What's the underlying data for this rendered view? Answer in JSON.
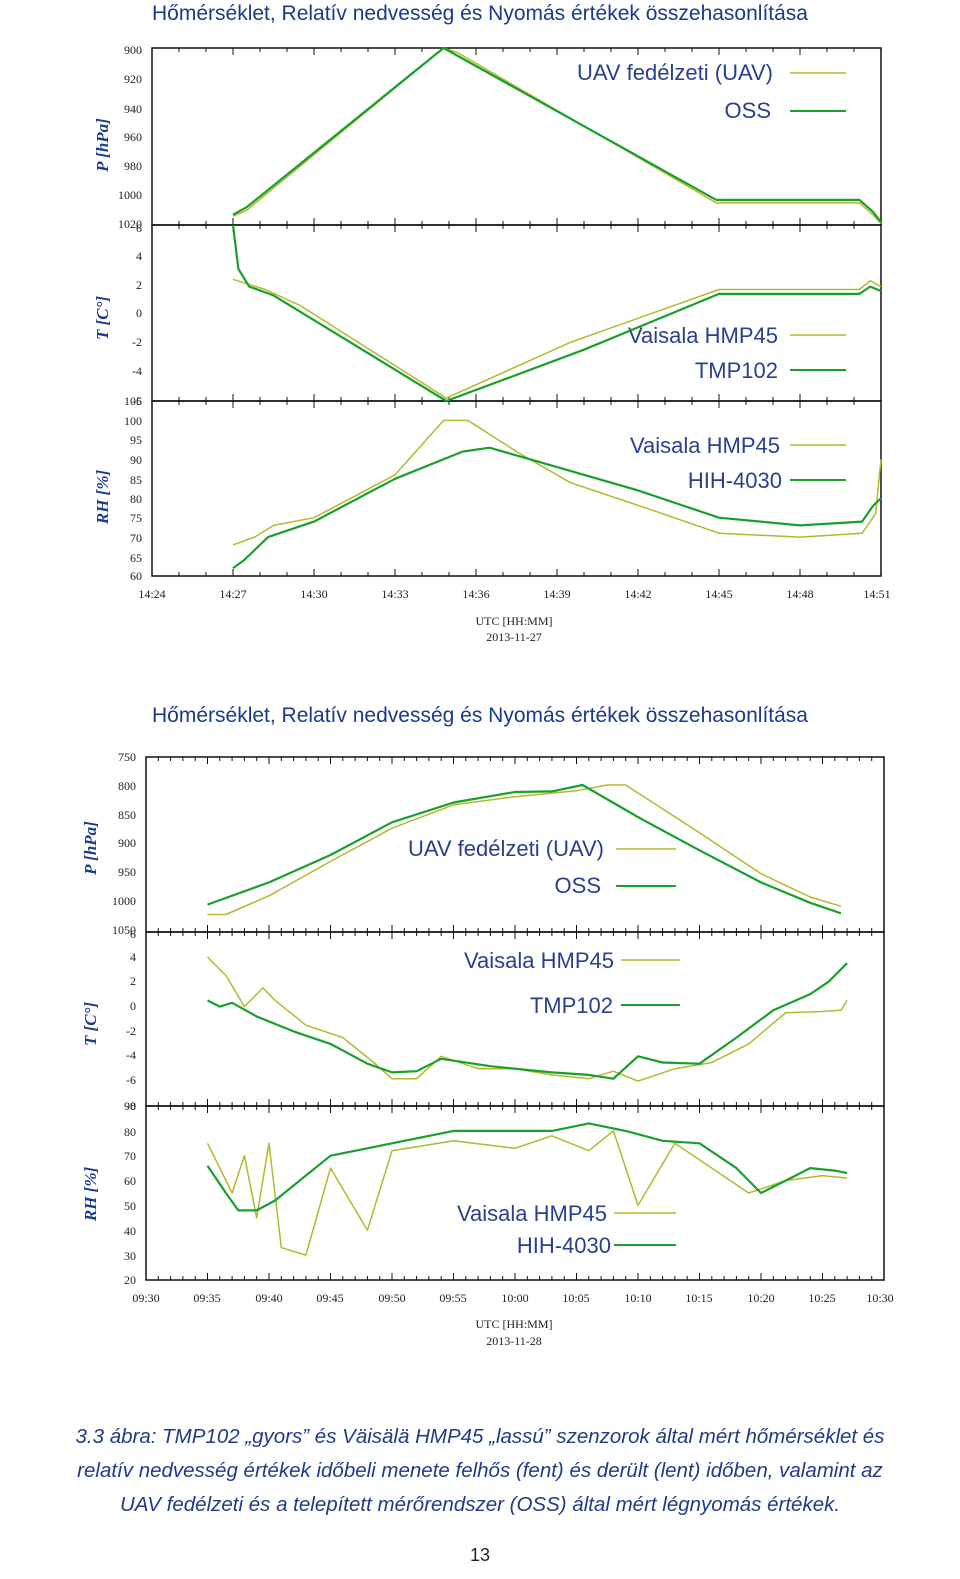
{
  "colors": {
    "vaisala": "#b5b82c",
    "green": "#18a02c",
    "frame": "#111111",
    "title": "#1a3a8c"
  },
  "figure1": {
    "title": "Hőmérséklet, Relatív nedvesség és Nyomás értékek összehasonlítása",
    "xlabel": "UTC [HH:MM]",
    "date": "2013-11-27",
    "xticks": [
      "14:24",
      "14:27",
      "14:30",
      "14:33",
      "14:36",
      "14:39",
      "14:42",
      "14:45",
      "14:48",
      "14:51"
    ],
    "panels": [
      {
        "ylabel": "P [hPa]",
        "yticks": [
          "900",
          "920",
          "940",
          "960",
          "980",
          "1000",
          "1020"
        ],
        "legend": [
          "UAV fedélzeti (UAV)",
          "OSS"
        ]
      },
      {
        "ylabel": "T [C°]",
        "yticks": [
          "6",
          "4",
          "2",
          "0",
          "-2",
          "-4",
          "-6"
        ],
        "legend": [
          "Vaisala HMP45",
          "TMP102"
        ]
      },
      {
        "ylabel": "RH [%]",
        "yticks": [
          "105",
          "100",
          "95",
          "90",
          "85",
          "80",
          "75",
          "70",
          "65",
          "60"
        ],
        "legend": [
          "Vaisala HMP45",
          "HIH-4030"
        ]
      }
    ]
  },
  "figure2": {
    "title": "Hőmérséklet, Relatív nedvesség és Nyomás értékek összehasonlítása",
    "xlabel": "UTC [HH:MM]",
    "date": "2013-11-28",
    "xticks": [
      "09:30",
      "09:35",
      "09:40",
      "09:45",
      "09:50",
      "09:55",
      "10:00",
      "10:05",
      "10:10",
      "10:15",
      "10:20",
      "10:25",
      "10:30"
    ],
    "panels": [
      {
        "ylabel": "P [hPa]",
        "yticks": [
          "750",
          "800",
          "850",
          "900",
          "950",
          "1000",
          "1050"
        ],
        "legend": [
          "UAV fedélzeti (UAV)",
          "OSS"
        ]
      },
      {
        "ylabel": "T [C°]",
        "yticks": [
          "6",
          "4",
          "2",
          "0",
          "-2",
          "-4",
          "-6",
          "-8"
        ],
        "legend": [
          "Vaisala HMP45",
          "TMP102"
        ]
      },
      {
        "ylabel": "RH [%]",
        "yticks": [
          "90",
          "80",
          "70",
          "60",
          "50",
          "40",
          "30",
          "20"
        ],
        "legend": [
          "Vaisala HMP45",
          "HIH-4030"
        ]
      }
    ]
  },
  "chart_data": [
    {
      "type": "line",
      "title": "Hőmérséklet, Relatív nedvesség és Nyomás értékek összehasonlítása",
      "xlabel": "UTC [HH:MM] 2013-11-27",
      "x_unit": "minutes after 14:24",
      "xlim": [
        0,
        27
      ],
      "panels": [
        {
          "ylabel": "P [hPa]",
          "ylim": [
            1020,
            900
          ],
          "series": [
            {
              "name": "UAV fedélzeti (UAV)",
              "x": [
                3,
                3.5,
                10.8,
                11.3,
                20.9,
                26.2,
                26.7,
                27
              ],
              "y": [
                1014,
                1010,
                900,
                903,
                1005,
                1005,
                1013,
                1019
              ]
            },
            {
              "name": "OSS",
              "x": [
                3,
                3.5,
                10.8,
                20.9,
                26.2,
                26.7,
                27
              ],
              "y": [
                1013,
                1008,
                900,
                1003,
                1003,
                1011,
                1018
              ]
            }
          ]
        },
        {
          "ylabel": "T [C°]",
          "ylim": [
            -6,
            6
          ],
          "series": [
            {
              "name": "Vaisala HMP45",
              "x": [
                3,
                4.2,
                5.5,
                10.9,
                15.5,
                21.0,
                26.2,
                26.6,
                27
              ],
              "y": [
                2.3,
                1.6,
                0.5,
                -5.8,
                -2.0,
                1.6,
                1.6,
                2.2,
                1.8
              ]
            },
            {
              "name": "TMP102",
              "x": [
                3,
                3.2,
                3.6,
                4.5,
                10.9,
                16.0,
                21.0,
                26.2,
                26.6,
                27
              ],
              "y": [
                6,
                3.0,
                1.8,
                1.2,
                -6.0,
                -2.5,
                1.3,
                1.3,
                1.8,
                1.5
              ]
            }
          ]
        },
        {
          "ylabel": "RH [%]",
          "ylim": [
            60,
            105
          ],
          "series": [
            {
              "name": "Vaisala HMP45",
              "x": [
                3,
                3.8,
                4.5,
                6,
                9,
                10.8,
                11.7,
                13.5,
                15.5,
                18.5,
                21,
                24,
                26.3,
                26.8,
                27
              ],
              "y": [
                68,
                70,
                73,
                75,
                86,
                100,
                100,
                92,
                84,
                77,
                71,
                70,
                71,
                76,
                90
              ]
            },
            {
              "name": "HIH-4030",
              "x": [
                3,
                3.4,
                4.3,
                6,
                9,
                11.5,
                12.5,
                15,
                18,
                21,
                24,
                26.3,
                26.7,
                27
              ],
              "y": [
                62,
                64,
                70,
                74,
                85,
                92,
                93,
                88,
                82,
                75,
                73,
                74,
                78,
                80
              ]
            }
          ]
        }
      ]
    },
    {
      "type": "line",
      "title": "Hőmérséklet, Relatív nedvesség és Nyomás értékek összehasonlítása",
      "xlabel": "UTC [HH:MM] 2013-11-28",
      "x_unit": "minutes after 09:30",
      "xlim": [
        0,
        60
      ],
      "panels": [
        {
          "ylabel": "P [hPa]",
          "ylim": [
            1050,
            750
          ],
          "series": [
            {
              "name": "UAV fedélzeti (UAV)",
              "x": [
                5,
                6.5,
                10,
                15,
                20,
                25,
                30,
                35,
                37.5,
                39,
                45,
                50,
                54,
                56.5
              ],
              "y": [
                1020,
                1020,
                988,
                929,
                872,
                832,
                818,
                808,
                798,
                798,
                880,
                950,
                990,
                1006
              ]
            },
            {
              "name": "OSS",
              "x": [
                5,
                10,
                15,
                20,
                25,
                30,
                33,
                35.5,
                40,
                45,
                50,
                54,
                56.5
              ],
              "y": [
                1003,
                965,
                918,
                862,
                828,
                810,
                809,
                798,
                853,
                910,
                965,
                1000,
                1018
              ]
            }
          ]
        },
        {
          "ylabel": "T [C°]",
          "ylim": [
            -8,
            6
          ],
          "series": [
            {
              "name": "Vaisala HMP45",
              "x": [
                5,
                5.5,
                6.5,
                8,
                9.5,
                10.5,
                13,
                16,
                18.5,
                20,
                22,
                24,
                27,
                30,
                33,
                36,
                38,
                40,
                43,
                46,
                49,
                52,
                55,
                56.5,
                57
              ],
              "y": [
                4,
                3.5,
                2.5,
                0,
                1.5,
                0.5,
                -1.5,
                -2.5,
                -4.5,
                -5.8,
                -5.8,
                -4,
                -5,
                -5,
                -5.5,
                -5.8,
                -5.2,
                -6,
                -5,
                -4.5,
                -3,
                -0.5,
                -0.4,
                -0.3,
                0.5
              ]
            },
            {
              "name": "TMP102",
              "x": [
                5,
                6,
                7,
                9,
                12,
                15,
                18,
                20,
                22,
                24,
                28,
                33,
                36,
                38,
                40,
                42,
                45,
                48,
                51,
                54,
                55.5,
                57
              ],
              "y": [
                0.5,
                0,
                0.3,
                -0.8,
                -2,
                -3,
                -4.6,
                -5.3,
                -5.2,
                -4.2,
                -4.8,
                -5.3,
                -5.5,
                -5.8,
                -4,
                -4.5,
                -4.6,
                -2.5,
                -0.3,
                1,
                2,
                3.5
              ]
            }
          ]
        },
        {
          "ylabel": "RH [%]",
          "ylim": [
            20,
            90
          ],
          "series": [
            {
              "name": "Vaisala HMP45",
              "x": [
                5,
                6,
                7,
                8,
                9,
                10,
                11,
                13,
                15,
                18,
                20,
                25,
                30,
                33,
                36,
                38,
                40,
                43,
                46,
                49,
                52,
                55,
                57
              ],
              "y": [
                75,
                65,
                55,
                70,
                45,
                75,
                33,
                30,
                65,
                40,
                72,
                76,
                73,
                78,
                72,
                80,
                50,
                75,
                65,
                55,
                60,
                62,
                61
              ]
            },
            {
              "name": "HIH-4030",
              "x": [
                5,
                6.5,
                7.5,
                9,
                10.5,
                12,
                15,
                18,
                21,
                25,
                30,
                33,
                36,
                39,
                42,
                45,
                48,
                50,
                52,
                54,
                56,
                57
              ],
              "y": [
                66,
                55,
                48,
                48,
                52,
                58,
                70,
                73,
                76,
                80,
                80,
                80,
                83,
                80,
                76,
                75,
                65,
                55,
                60,
                65,
                64,
                63
              ]
            }
          ]
        }
      ]
    }
  ],
  "caption": {
    "line1": "3.3 ábra: TMP102 „gyors” és Väisälä HMP45 „lassú” szenzorok által mért hőmérséklet és",
    "line2": "relatív nedvesség értékek időbeli menete felhős (fent) és derült (lent) időben, valamint az",
    "line3": "UAV fedélzeti és a telepített mérőrendszer (OSS) által mért légnyomás értékek."
  },
  "page_number": "13"
}
